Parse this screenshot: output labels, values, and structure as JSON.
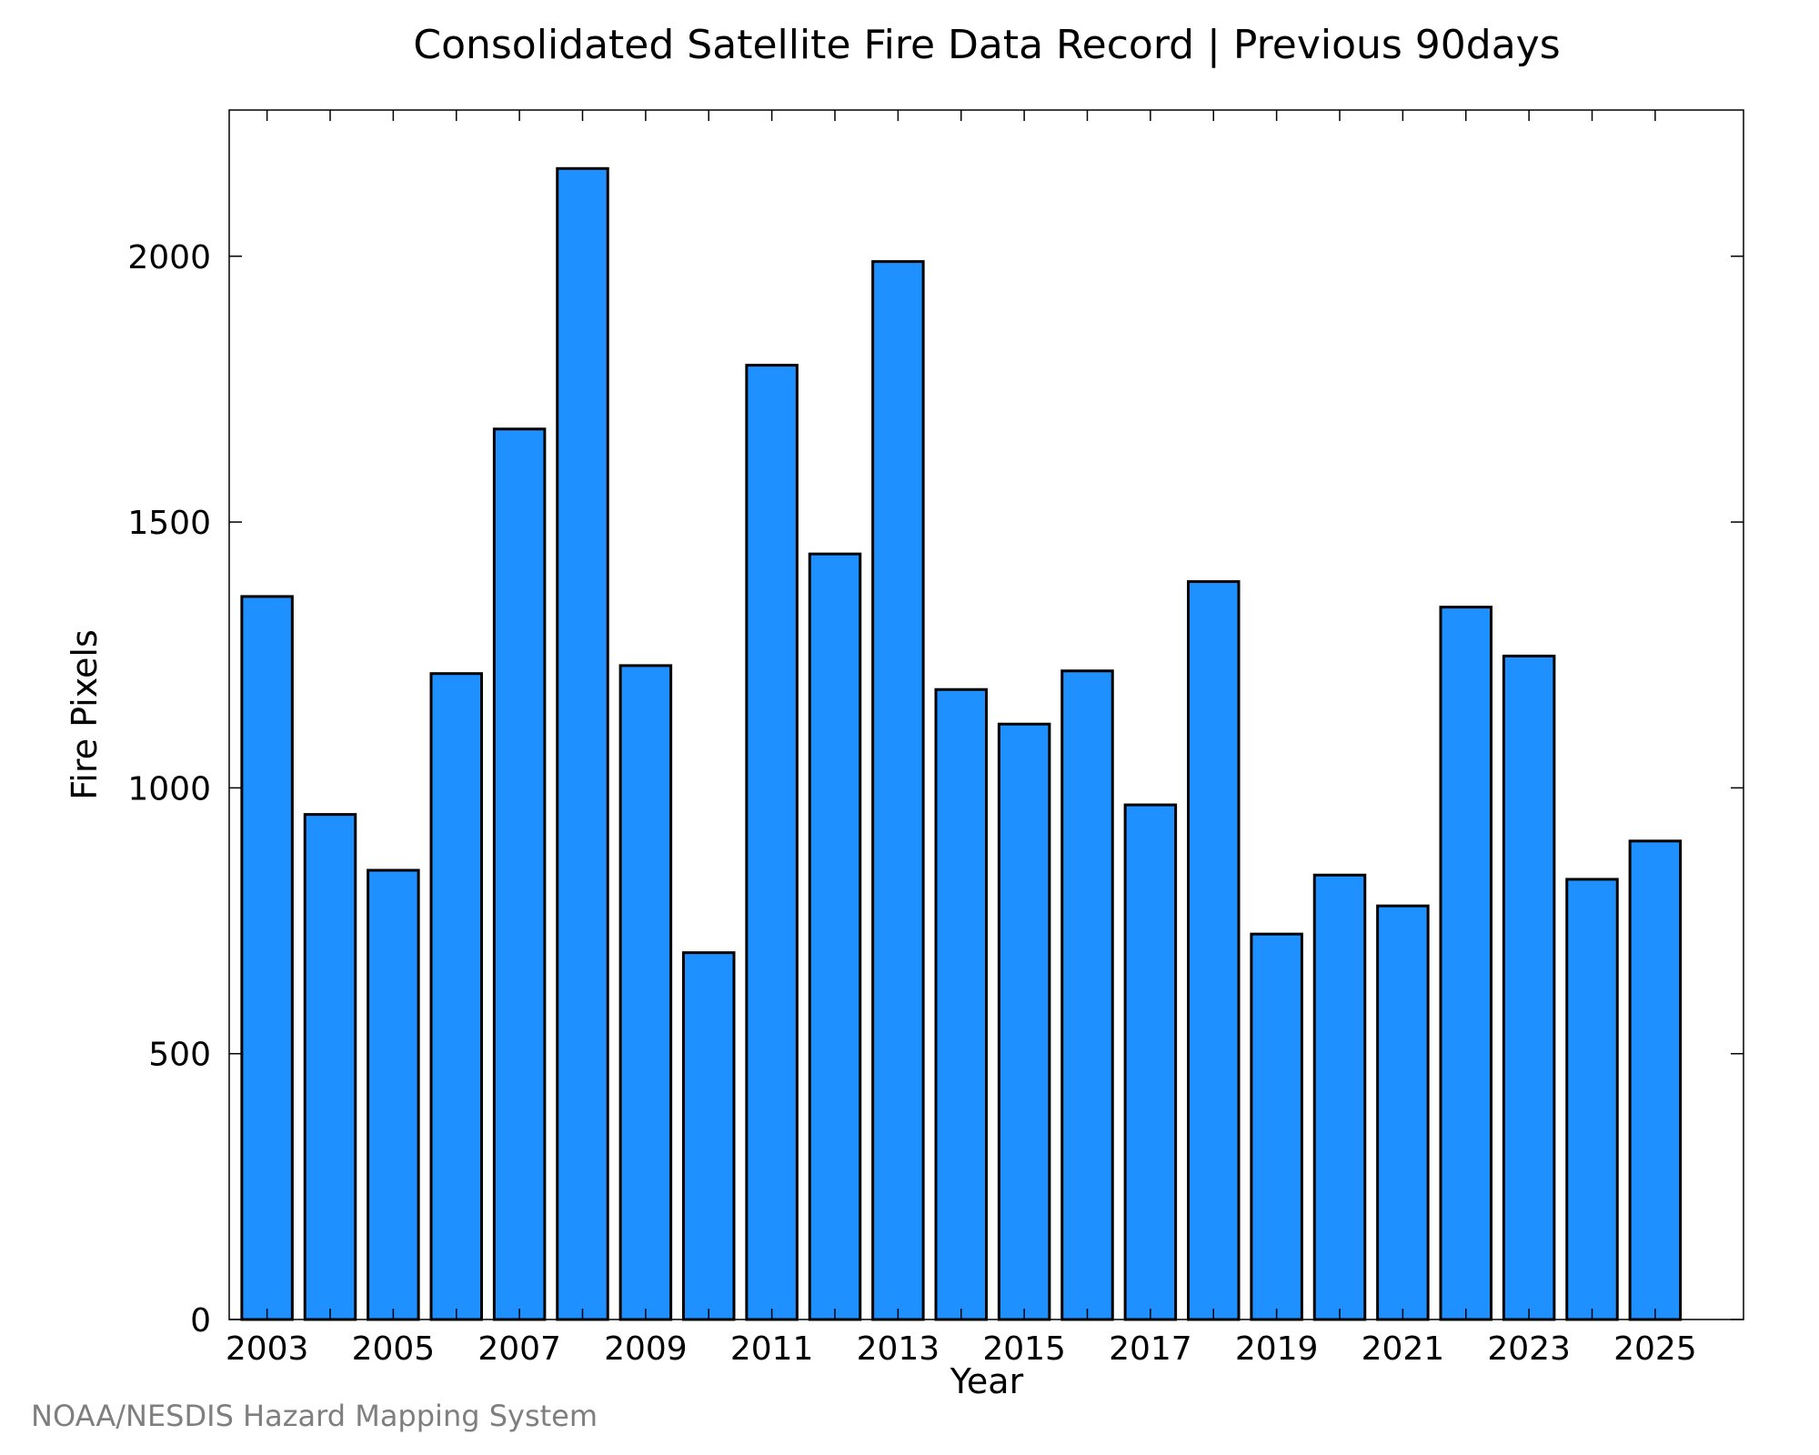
{
  "chart_data": {
    "type": "bar",
    "title": "Consolidated Satellite Fire Data Record | Previous 90days",
    "xlabel": "Year",
    "ylabel": "Fire Pixels",
    "categories": [
      "2003",
      "2004",
      "2005",
      "2006",
      "2007",
      "2008",
      "2009",
      "2010",
      "2011",
      "2012",
      "2013",
      "2014",
      "2015",
      "2016",
      "2017",
      "2018",
      "2019",
      "2020",
      "2021",
      "2022",
      "2023",
      "2024",
      "2025"
    ],
    "values": [
      1360,
      950,
      845,
      1215,
      1675,
      2165,
      1230,
      690,
      1795,
      1440,
      1990,
      1185,
      1120,
      1220,
      968,
      1388,
      725,
      836,
      778,
      1340,
      1248,
      828,
      900
    ],
    "x_tick_labels": [
      "2003",
      "2005",
      "2007",
      "2009",
      "2011",
      "2013",
      "2015",
      "2017",
      "2019",
      "2021",
      "2023",
      "2025"
    ],
    "y_ticks": [
      0,
      500,
      1000,
      1500,
      2000
    ],
    "ylim": [
      0,
      2275
    ],
    "bar_color": "#1e90ff",
    "edge_color": "#000000",
    "grid": false
  },
  "credit": "NOAA/NESDIS Hazard Mapping System"
}
